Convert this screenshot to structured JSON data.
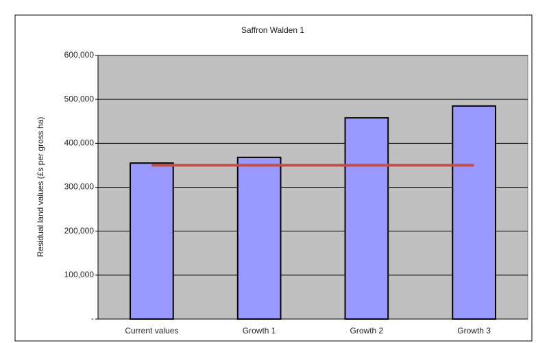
{
  "chart_data": {
    "type": "bar",
    "title": "Saffron Walden 1",
    "y_label": "Residual land values (£s per gross ha)",
    "categories": [
      "Current values",
      "Growth 1",
      "Growth 2",
      "Growth 3"
    ],
    "series": [
      {
        "type": "bar",
        "color": "#9999ff",
        "values": [
          355000,
          368000,
          458000,
          485000
        ]
      },
      {
        "type": "line",
        "color": "#c0504d",
        "values": [
          350000,
          350000,
          350000,
          350000
        ]
      }
    ],
    "ylim": [
      0,
      600000
    ],
    "yticks": [
      {
        "value": 0,
        "label": "-"
      },
      {
        "value": 100000,
        "label": "100,000"
      },
      {
        "value": 200000,
        "label": "200,000"
      },
      {
        "value": 300000,
        "label": "300,000"
      },
      {
        "value": 400000,
        "label": "400,000"
      },
      {
        "value": 500000,
        "label": "500,000"
      },
      {
        "value": 600000,
        "label": "600,000"
      }
    ],
    "grid": true,
    "plot_background": "#c0c0c0"
  }
}
